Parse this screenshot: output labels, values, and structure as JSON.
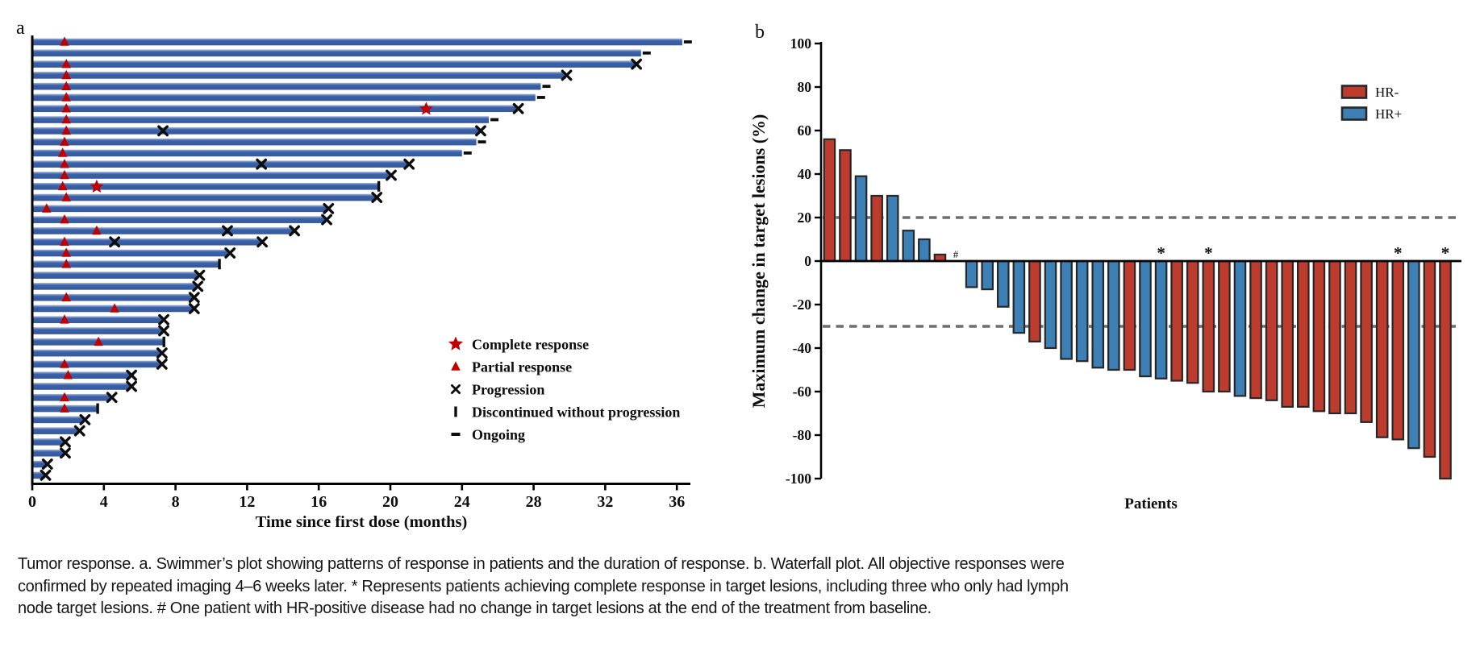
{
  "figure_labels": {
    "panel_a": "a",
    "panel_b": "b"
  },
  "caption": {
    "line1": "Tumor response. a. Swimmer’s plot showing patterns of response in patients and the duration of response. b. Waterfall plot. All objective responses were",
    "line2": "confirmed by repeated imaging 4–6 weeks later. * Represents patients achieving complete response in target lesions, including three who only had lymph",
    "line3": "node target lesions. # One patient with HR-positive disease had no change in target lesions at the end of the treatment from baseline."
  },
  "chart_data": [
    {
      "id": "swimmer_plot",
      "type": "bar",
      "orientation": "horizontal",
      "xlabel": "Time since first dose (months)",
      "x_ticks": [
        0,
        4,
        8,
        12,
        16,
        20,
        24,
        28,
        32,
        36
      ],
      "xlim": [
        0,
        36.8
      ],
      "colors": {
        "bar": "#3a61a8",
        "bar_light": "#a3b5da",
        "marker_red": "#c00000",
        "marker_black": "#0d0d0d"
      },
      "legend": [
        {
          "symbol": "star",
          "label": "Complete response"
        },
        {
          "symbol": "triangle",
          "label": "Partial response"
        },
        {
          "symbol": "x",
          "label": "Progression"
        },
        {
          "symbol": "vbar",
          "label": "Discontinued without progression"
        },
        {
          "symbol": "dash",
          "label": "Ongoing"
        }
      ],
      "patients": [
        {
          "duration": 36.3,
          "end": "ongoing",
          "pr": 1.8
        },
        {
          "duration": 34.0,
          "end": "ongoing"
        },
        {
          "duration": 33.7,
          "end": "progression",
          "pr": 1.9
        },
        {
          "duration": 29.8,
          "end": "progression",
          "pr": 1.9
        },
        {
          "duration": 28.4,
          "end": "ongoing",
          "pr": 1.9
        },
        {
          "duration": 28.1,
          "end": "ongoing",
          "pr": 1.9
        },
        {
          "duration": 27.1,
          "end": "progression",
          "pr": 1.9,
          "cr": 22.0
        },
        {
          "duration": 25.5,
          "end": "ongoing",
          "pr": 1.9
        },
        {
          "duration": 25.0,
          "end": "progression",
          "pr": 1.9,
          "x": 7.3
        },
        {
          "duration": 24.8,
          "end": "ongoing",
          "pr": 1.8
        },
        {
          "duration": 24.0,
          "end": "ongoing",
          "pr": 1.7
        },
        {
          "duration": 21.0,
          "end": "progression",
          "pr": 1.8,
          "x": 12.8
        },
        {
          "duration": 20.0,
          "end": "progression",
          "pr": 1.8
        },
        {
          "duration": 19.3,
          "end": "discontinued",
          "pr": 1.7,
          "cr": 3.6
        },
        {
          "duration": 19.2,
          "end": "progression",
          "pr": 1.9
        },
        {
          "duration": 16.5,
          "end": "progression",
          "pr": 0.8
        },
        {
          "duration": 16.4,
          "end": "progression",
          "pr": 1.8
        },
        {
          "duration": 14.6,
          "end": "progression",
          "pr": 3.6,
          "x": 10.9
        },
        {
          "duration": 12.8,
          "end": "progression",
          "pr": 1.8,
          "x": 4.6
        },
        {
          "duration": 11.0,
          "end": "progression",
          "pr": 1.9
        },
        {
          "duration": 10.4,
          "end": "discontinued",
          "pr": 1.9
        },
        {
          "duration": 9.3,
          "end": "progression"
        },
        {
          "duration": 9.2,
          "end": "progression"
        },
        {
          "duration": 9.0,
          "end": "progression",
          "pr": 1.9
        },
        {
          "duration": 9.0,
          "end": "progression",
          "pr": 4.6
        },
        {
          "duration": 7.3,
          "end": "progression",
          "pr": 1.8
        },
        {
          "duration": 7.3,
          "end": "progression"
        },
        {
          "duration": 7.3,
          "end": "discontinued",
          "pr": 3.7
        },
        {
          "duration": 7.2,
          "end": "progression"
        },
        {
          "duration": 7.2,
          "end": "progression",
          "pr": 1.8
        },
        {
          "duration": 5.5,
          "end": "progression",
          "pr": 2.0
        },
        {
          "duration": 5.5,
          "end": "progression"
        },
        {
          "duration": 4.4,
          "end": "progression",
          "pr": 1.8
        },
        {
          "duration": 3.6,
          "end": "discontinued",
          "pr": 1.8
        },
        {
          "duration": 2.9,
          "end": "progression"
        },
        {
          "duration": 2.6,
          "end": "progression"
        },
        {
          "duration": 1.8,
          "end": "progression"
        },
        {
          "duration": 1.8,
          "end": "progression"
        },
        {
          "duration": 0.8,
          "end": "progression"
        },
        {
          "duration": 0.7,
          "end": "progression"
        }
      ]
    },
    {
      "id": "waterfall_plot",
      "type": "bar",
      "xlabel": "Patients",
      "ylabel": "Maximum change in target lesions (%)",
      "ylim": [
        -100,
        100
      ],
      "y_ticks": [
        100,
        80,
        60,
        40,
        20,
        0,
        -20,
        -40,
        -60,
        -80,
        -100
      ],
      "reference_lines": [
        20,
        -30
      ],
      "colors": {
        "HR-": "#bd3c2e",
        "HR+": "#3d80b6",
        "outline": "#272727",
        "dashed": "#6e6e6e"
      },
      "legend": [
        {
          "label": "HR-",
          "group": "HR-"
        },
        {
          "label": "HR+",
          "group": "HR+"
        }
      ],
      "patients": [
        {
          "value": 56,
          "group": "HR-"
        },
        {
          "value": 51,
          "group": "HR-"
        },
        {
          "value": 39,
          "group": "HR+"
        },
        {
          "value": 30,
          "group": "HR-"
        },
        {
          "value": 30,
          "group": "HR+"
        },
        {
          "value": 14,
          "group": "HR+"
        },
        {
          "value": 10,
          "group": "HR+"
        },
        {
          "value": 3,
          "group": "HR-"
        },
        {
          "value": 0,
          "group": "HR+",
          "mark": "#"
        },
        {
          "value": -12,
          "group": "HR+"
        },
        {
          "value": -13,
          "group": "HR+"
        },
        {
          "value": -21,
          "group": "HR+"
        },
        {
          "value": -33,
          "group": "HR+"
        },
        {
          "value": -37,
          "group": "HR-"
        },
        {
          "value": -40,
          "group": "HR+"
        },
        {
          "value": -45,
          "group": "HR+"
        },
        {
          "value": -46,
          "group": "HR+"
        },
        {
          "value": -49,
          "group": "HR+"
        },
        {
          "value": -50,
          "group": "HR+"
        },
        {
          "value": -50,
          "group": "HR-"
        },
        {
          "value": -53,
          "group": "HR+"
        },
        {
          "value": -54,
          "group": "HR+",
          "mark": "*"
        },
        {
          "value": -55,
          "group": "HR-"
        },
        {
          "value": -56,
          "group": "HR-"
        },
        {
          "value": -60,
          "group": "HR-",
          "mark": "*"
        },
        {
          "value": -60,
          "group": "HR-"
        },
        {
          "value": -62,
          "group": "HR+"
        },
        {
          "value": -63,
          "group": "HR-"
        },
        {
          "value": -64,
          "group": "HR-"
        },
        {
          "value": -67,
          "group": "HR-"
        },
        {
          "value": -67,
          "group": "HR-"
        },
        {
          "value": -69,
          "group": "HR-"
        },
        {
          "value": -70,
          "group": "HR-"
        },
        {
          "value": -70,
          "group": "HR-"
        },
        {
          "value": -74,
          "group": "HR-"
        },
        {
          "value": -81,
          "group": "HR-"
        },
        {
          "value": -82,
          "group": "HR-",
          "mark": "*"
        },
        {
          "value": -86,
          "group": "HR+"
        },
        {
          "value": -90,
          "group": "HR-"
        },
        {
          "value": -100,
          "group": "HR-",
          "mark": "*"
        }
      ]
    }
  ]
}
